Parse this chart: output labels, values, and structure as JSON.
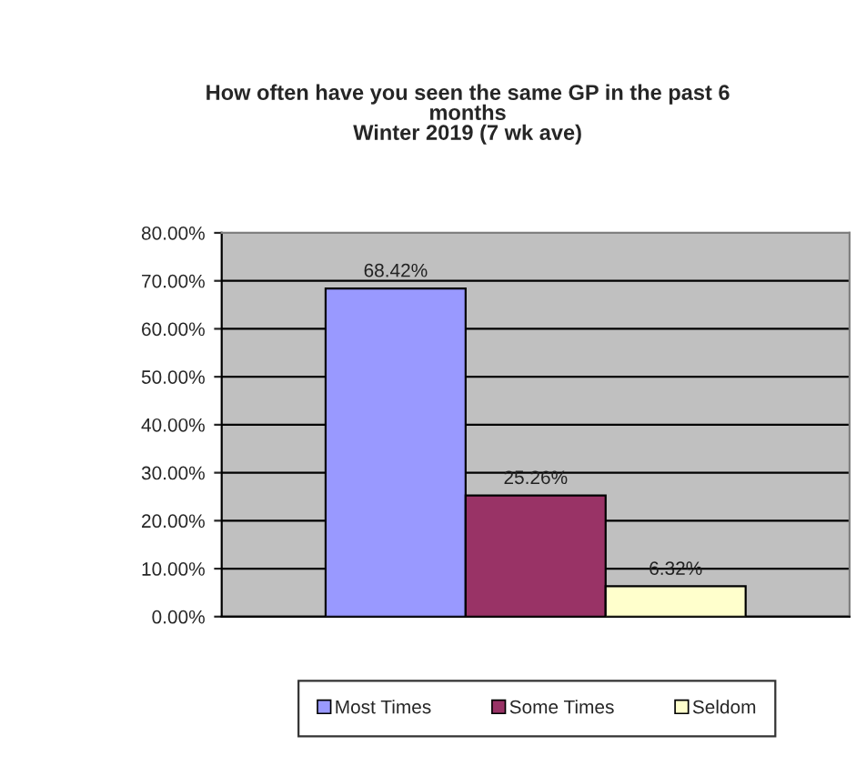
{
  "chart_data": {
    "type": "bar",
    "title": "How often have you seen the same GP in the past 6\nmonths\nWinter 2019 (7 wk ave)",
    "categories": [
      null
    ],
    "series": [
      {
        "name": "Most Times",
        "color": "#9999ff",
        "values": [
          68.42
        ]
      },
      {
        "name": "Some Times",
        "color": "#993366",
        "values": [
          25.26
        ]
      },
      {
        "name": "Seldom",
        "color": "#ffffcc",
        "values": [
          6.32
        ]
      }
    ],
    "ylim": [
      0,
      80
    ],
    "yticks": [
      {
        "value": 0,
        "label": "0.00%"
      },
      {
        "value": 10,
        "label": "10.00%"
      },
      {
        "value": 20,
        "label": "20.00%"
      },
      {
        "value": 30,
        "label": "30.00%"
      },
      {
        "value": 40,
        "label": "40.00%"
      },
      {
        "value": 50,
        "label": "50.00%"
      },
      {
        "value": 60,
        "label": "60.00%"
      },
      {
        "value": 70,
        "label": "70.00%"
      },
      {
        "value": 80,
        "label": "80.00%"
      }
    ],
    "value_labels": [
      "68.42%",
      "25.26%",
      "6.32%"
    ],
    "grid": "y",
    "legend": "bottom"
  }
}
